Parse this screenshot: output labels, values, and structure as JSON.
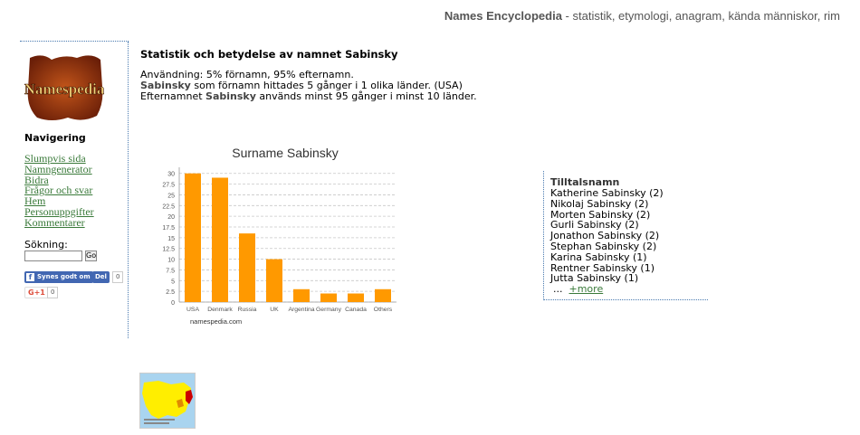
{
  "header": {
    "site_name": "Names Encyclopedia",
    "tagline": " - statistik, etymologi, anagram, kända människor, rim"
  },
  "sidebar": {
    "logo_text": "Namespedia",
    "nav_heading": "Navigering",
    "nav_items": [
      {
        "label": "Slumpvis sida"
      },
      {
        "label": "Namngenerator"
      },
      {
        "label": "Bidra"
      },
      {
        "label": "Frågor och svar"
      },
      {
        "label": "Hem"
      },
      {
        "label": "Personuppgifter"
      },
      {
        "label": "Kommentarer"
      }
    ],
    "search_label": "Sökning:",
    "search_value": "",
    "search_button": "Go",
    "fb_like_label": "Synes godt om",
    "fb_share_label": "Del",
    "fb_count": "0",
    "gplus_label": "G+1",
    "gplus_count": "0"
  },
  "main": {
    "title": "Statistik och betydelse av namnet Sabinsky",
    "usage_line": "Användning: 5% förnamn, 95% efternamn.",
    "firstname_name": "Sabinsky",
    "firstname_rest": " som förnamn hittades 5 gånger i 1 olika länder. (USA)",
    "surname_prefix": "Efternamnet ",
    "surname_name": "Sabinsky",
    "surname_rest": " används minst 95 gånger i minst 10 länder."
  },
  "chart_data": {
    "type": "bar",
    "title": "Surname Sabinsky",
    "categories": [
      "USA",
      "Denmark",
      "Russia",
      "UK",
      "Argentina",
      "Germany",
      "Canada",
      "Others"
    ],
    "values": [
      30,
      29,
      16,
      10,
      3,
      2,
      2,
      3
    ],
    "ylim": [
      0,
      31
    ],
    "yticks": [
      "0",
      "2.5",
      "5",
      "7.5",
      "10",
      "12.5",
      "15",
      "17.5",
      "20",
      "22.5",
      "25",
      "27.5",
      "30"
    ],
    "grid": true,
    "bar_color": "#ff9900",
    "source_label": "namespedia.com"
  },
  "related": {
    "title": "Tilltalsnamn",
    "items": [
      "Katherine Sabinsky (2)",
      "Nikolaj Sabinsky (2)",
      "Morten Sabinsky (2)",
      "Gurli Sabinsky (2)",
      "Jonathon Sabinsky (2)",
      "Stephan Sabinsky (2)",
      "Karina Sabinsky (1)",
      "Rentner Sabinsky (1)",
      "Jutta Sabinsky (1)"
    ],
    "ellipsis": "...",
    "more_label": "+more"
  }
}
